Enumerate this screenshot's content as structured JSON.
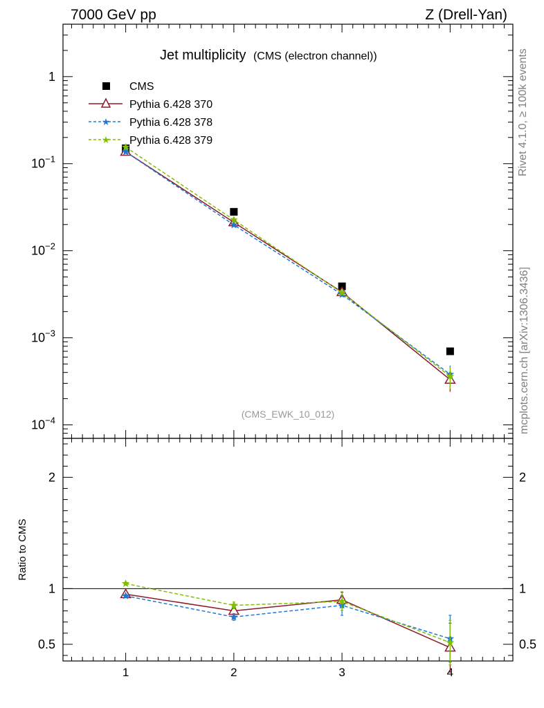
{
  "header": {
    "left": "7000 GeV pp",
    "right": "Z (Drell-Yan)"
  },
  "side_text": {
    "upper": "Rivet 4.1.0, ≥ 100k events",
    "lower": "mcplots.cern.ch [arXiv:1306.3436]"
  },
  "chart_data": {
    "type": "scatter",
    "title": "Jet multiplicity",
    "subtitle": "(CMS (electron channel))",
    "analysis_tag": "(CMS_EWK_10_012)",
    "x": [
      1,
      2,
      3,
      4
    ],
    "xlim": [
      0.42,
      4.58
    ],
    "x_ticks": [
      "1",
      "2",
      "3",
      "4"
    ],
    "main": {
      "yscale": "log",
      "ylim": [
        7e-05,
        4.0
      ],
      "y_tick_labels": [
        {
          "value": 1,
          "base": "1",
          "exp": ""
        },
        {
          "value": 0.1,
          "base": "10",
          "exp": "−1"
        },
        {
          "value": 0.01,
          "base": "10",
          "exp": "−2"
        },
        {
          "value": 0.001,
          "base": "10",
          "exp": "−3"
        },
        {
          "value": 0.0001,
          "base": "10",
          "exp": "−4"
        }
      ],
      "series": [
        {
          "name": "CMS",
          "marker": "square",
          "color": "#000000",
          "values": [
            0.15,
            0.028,
            0.0039,
            0.0007
          ]
        },
        {
          "name": "Pythia 6.428 370",
          "marker": "open-triangle",
          "line": "solid",
          "color": "#8b1a2a",
          "values": [
            0.137,
            0.0212,
            0.00335,
            0.00033
          ],
          "err": [
            0.003,
            0.0006,
            0.0002,
            9e-05
          ]
        },
        {
          "name": "Pythia 6.428 378",
          "marker": "star",
          "line": "dashed",
          "color": "#1f78d1",
          "values": [
            0.137,
            0.0198,
            0.00315,
            0.00038
          ],
          "err": [
            0.003,
            0.0006,
            0.0002,
            0.0001
          ]
        },
        {
          "name": "Pythia 6.428 379",
          "marker": "star",
          "line": "dashed",
          "color": "#7fbf00",
          "values": [
            0.155,
            0.0226,
            0.0033,
            0.00036
          ],
          "err": [
            0.003,
            0.0006,
            0.0002,
            0.0001
          ]
        }
      ]
    },
    "ratio": {
      "ylabel": "Ratio to CMS",
      "ylim": [
        0.35,
        2.35
      ],
      "y_ticks": [
        0.5,
        1,
        2
      ],
      "y_tick_labels": [
        "0.5",
        "1",
        "2"
      ],
      "reference": 1,
      "series": [
        {
          "name": "Pythia 6.428 370",
          "color": "#8b1a2a",
          "values": [
            0.95,
            0.8,
            0.9,
            0.47
          ],
          "err": [
            0.01,
            0.03,
            0.07,
            0.22
          ]
        },
        {
          "name": "Pythia 6.428 378",
          "color": "#1f78d1",
          "values": [
            0.935,
            0.745,
            0.85,
            0.55
          ],
          "err": [
            0.01,
            0.03,
            0.09,
            0.21
          ]
        },
        {
          "name": "Pythia 6.428 379",
          "color": "#7fbf00",
          "values": [
            1.045,
            0.85,
            0.885,
            0.515
          ],
          "err": [
            0.01,
            0.03,
            0.08,
            0.2
          ]
        }
      ]
    }
  }
}
